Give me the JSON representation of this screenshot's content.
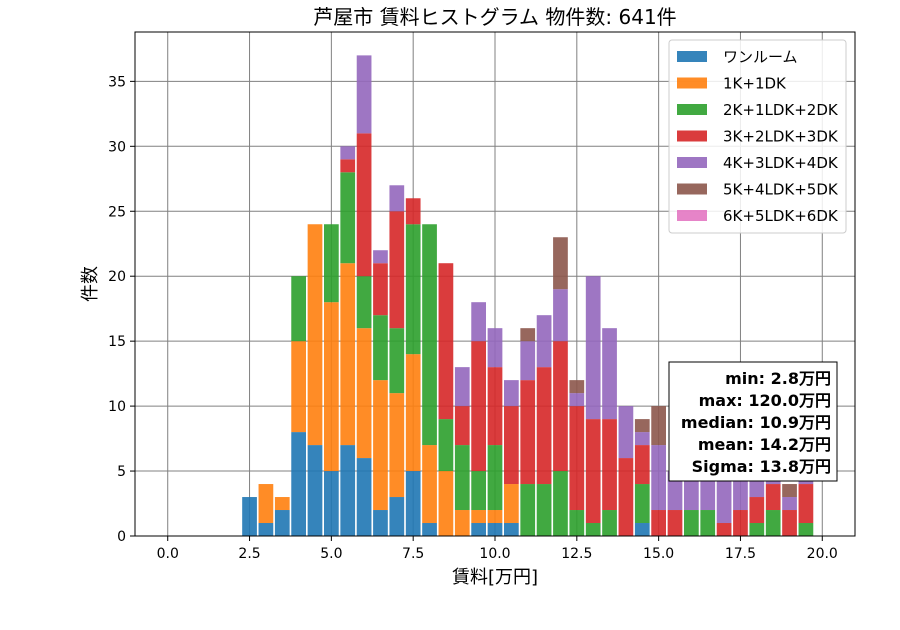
{
  "chart_data": {
    "type": "bar",
    "stacked": true,
    "title": "芦屋市 賃料ヒストグラム  物件数: 641件",
    "xlabel": "賃料[万円]",
    "ylabel": "件数",
    "xlim": [
      -1.0,
      21.0
    ],
    "ylim": [
      0,
      38.8
    ],
    "xticks": [
      0,
      2.5,
      5,
      7.5,
      10,
      12.5,
      15,
      17.5,
      20
    ],
    "xtick_labels": [
      "0.0",
      "2.5",
      "5.0",
      "7.5",
      "10.0",
      "12.5",
      "15.0",
      "17.5",
      "20.0"
    ],
    "yticks": [
      0,
      5,
      10,
      15,
      20,
      25,
      30,
      35
    ],
    "ytick_labels": [
      "0",
      "5",
      "10",
      "15",
      "20",
      "25",
      "30",
      "35"
    ],
    "grid": true,
    "legend_position": "top-right",
    "bin_width": 0.5,
    "bins": [
      2.5,
      3.0,
      3.5,
      4.0,
      4.5,
      5.0,
      5.5,
      6.0,
      6.5,
      7.0,
      7.5,
      8.0,
      8.5,
      9.0,
      9.5,
      10.0,
      10.5,
      11.0,
      11.5,
      12.0,
      12.5,
      13.0,
      13.5,
      14.0,
      14.5,
      15.0,
      15.5,
      16.0,
      16.5,
      17.0,
      17.5,
      18.0,
      18.5,
      19.0,
      19.5
    ],
    "series": [
      {
        "name": "ワンルーム",
        "color": "#1f77b4",
        "values": [
          3,
          1,
          2,
          8,
          7,
          5,
          7,
          6,
          2,
          3,
          5,
          1,
          0,
          0,
          1,
          1,
          1,
          0,
          0,
          0,
          0,
          0,
          0,
          0,
          1,
          0,
          0,
          0,
          0,
          0,
          0,
          0,
          0,
          0,
          0
        ]
      },
      {
        "name": "1K+1DK",
        "color": "#ff7f0e",
        "values": [
          0,
          3,
          1,
          7,
          17,
          13,
          14,
          10,
          10,
          8,
          9,
          6,
          5,
          2,
          1,
          1,
          3,
          0,
          0,
          0,
          0,
          0,
          0,
          0,
          0,
          0,
          0,
          0,
          0,
          0,
          0,
          0,
          0,
          0,
          0
        ]
      },
      {
        "name": "2K+1LDK+2DK",
        "color": "#2ca02c",
        "values": [
          0,
          0,
          0,
          5,
          0,
          6,
          7,
          4,
          5,
          5,
          10,
          17,
          4,
          5,
          3,
          5,
          0,
          4,
          4,
          5,
          2,
          1,
          2,
          0,
          3,
          0,
          0,
          2,
          2,
          0,
          0,
          1,
          2,
          0,
          1
        ]
      },
      {
        "name": "3K+2LDK+3DK",
        "color": "#d62728",
        "values": [
          0,
          0,
          0,
          0,
          0,
          0,
          1,
          11,
          4,
          9,
          2,
          0,
          12,
          3,
          10,
          6,
          6,
          8,
          9,
          10,
          8,
          8,
          7,
          6,
          3,
          2,
          2,
          0,
          0,
          1,
          2,
          2,
          2,
          2,
          3
        ]
      },
      {
        "name": "4K+3LDK+4DK",
        "color": "#9467bd",
        "values": [
          0,
          0,
          0,
          0,
          0,
          0,
          1,
          6,
          1,
          2,
          0,
          0,
          0,
          3,
          3,
          3,
          2,
          3,
          4,
          4,
          1,
          11,
          7,
          4,
          1,
          5,
          3,
          5,
          3,
          5,
          3,
          2,
          2,
          1,
          1
        ]
      },
      {
        "name": "5K+4LDK+5DK",
        "color": "#8c564b",
        "values": [
          0,
          0,
          0,
          0,
          0,
          0,
          0,
          0,
          0,
          0,
          0,
          0,
          0,
          0,
          0,
          0,
          0,
          1,
          0,
          4,
          1,
          0,
          0,
          0,
          1,
          3,
          0,
          0,
          0,
          0,
          0,
          0,
          0,
          1,
          0
        ]
      },
      {
        "name": "6K+5LDK+6DK",
        "color": "#e377c2",
        "values": [
          0,
          0,
          0,
          0,
          0,
          0,
          0,
          0,
          0,
          0,
          0,
          0,
          0,
          0,
          0,
          0,
          0,
          0,
          0,
          0,
          0,
          0,
          0,
          0,
          0,
          0,
          0,
          0,
          0,
          0,
          0,
          0,
          0,
          0,
          0
        ]
      }
    ],
    "stats": {
      "lines": [
        "min: 2.8万円",
        "max: 120.0万円",
        "median: 10.9万円",
        "mean: 14.2万円",
        "Sigma: 13.8万円"
      ]
    }
  }
}
